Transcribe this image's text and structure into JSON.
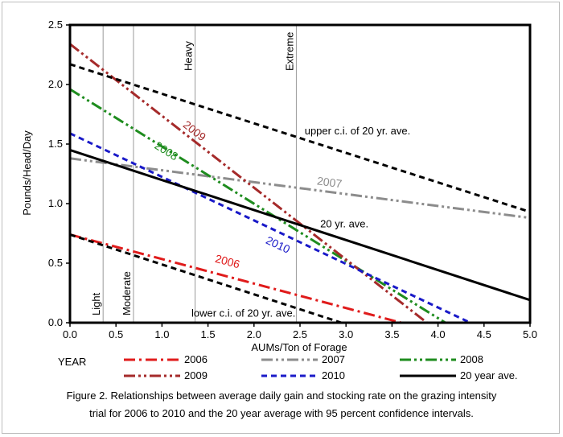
{
  "chart_data": {
    "type": "line",
    "title": "",
    "xlabel": "AUMs/Ton of Forage",
    "ylabel": "Pounds/Head/Day",
    "xlim": [
      0.0,
      5.0
    ],
    "ylim": [
      0.0,
      2.5
    ],
    "x_ticks": [
      "0.0",
      "0.5",
      "1.0",
      "1.5",
      "2.0",
      "2.5",
      "3.0",
      "3.5",
      "4.0",
      "4.5",
      "5.0"
    ],
    "y_ticks": [
      "0.0",
      "0.5",
      "1.0",
      "1.5",
      "2.0",
      "2.5"
    ],
    "grid": false,
    "intensity_lines": [
      {
        "label": "Light",
        "x": 0.36,
        "label_pos": "bottom"
      },
      {
        "label": "Moderate",
        "x": 0.69,
        "label_pos": "bottom"
      },
      {
        "label": "Heavy",
        "x": 1.36,
        "label_pos": "top"
      },
      {
        "label": "Extreme",
        "x": 2.46,
        "label_pos": "top"
      }
    ],
    "series": [
      {
        "name": "2006",
        "color": "#e01b1b",
        "dash": "dash-dot",
        "x": [
          0.0,
          3.6
        ],
        "y": [
          0.74,
          0.0
        ],
        "label": "2006",
        "label_at": [
          1.57,
          0.51
        ]
      },
      {
        "name": "2007",
        "color": "#8c8c8c",
        "dash": "dash-dot-dot",
        "x": [
          0.0,
          5.0
        ],
        "y": [
          1.38,
          0.88
        ],
        "label": "2007",
        "label_at": [
          2.68,
          1.16
        ]
      },
      {
        "name": "2008",
        "color": "#1e8c1e",
        "dash": "dash-dot-dot",
        "x": [
          0.0,
          4.08
        ],
        "y": [
          1.96,
          0.0
        ],
        "label": "2008",
        "label_at": [
          0.91,
          1.47
        ]
      },
      {
        "name": "2009",
        "color": "#a52a2a",
        "dash": "dash-dot-dot",
        "x": [
          0.0,
          3.88
        ],
        "y": [
          2.34,
          0.0
        ],
        "label": "2009",
        "label_at": [
          1.22,
          1.65
        ]
      },
      {
        "name": "2010",
        "color": "#1a1ac8",
        "dash": "dash",
        "x": [
          0.0,
          4.35
        ],
        "y": [
          1.59,
          0.0
        ],
        "label": "2010",
        "label_at": [
          2.12,
          0.67
        ]
      },
      {
        "name": "20 year ave.",
        "color": "#000000",
        "dash": "solid",
        "x": [
          0.0,
          5.0
        ],
        "y": [
          1.45,
          0.19
        ],
        "label": "20 yr. ave.",
        "label_at": [
          2.72,
          0.8
        ]
      },
      {
        "name": "upper c.i. of 20 yr. ave.",
        "color": "#000000",
        "dash": "dash",
        "x": [
          0.0,
          5.0
        ],
        "y": [
          2.17,
          0.93
        ],
        "label": "upper c.i. of 20 yr. ave.",
        "label_at": [
          2.55,
          1.58
        ]
      },
      {
        "name": "lower c.i. of 20 yr. ave.",
        "color": "#000000",
        "dash": "dash",
        "x": [
          0.0,
          2.95
        ],
        "y": [
          0.74,
          0.0
        ],
        "label": "lower c.i. of 20 yr. ave.",
        "label_at": [
          1.32,
          0.05
        ]
      }
    ]
  },
  "legend": {
    "heading": "YEAR",
    "items": [
      {
        "label": "2006",
        "color": "#e01b1b",
        "dash": "dash-dot"
      },
      {
        "label": "2007",
        "color": "#8c8c8c",
        "dash": "dash-dot-dot"
      },
      {
        "label": "2008",
        "color": "#1e8c1e",
        "dash": "dash-dot-dot"
      },
      {
        "label": "2009",
        "color": "#a52a2a",
        "dash": "dash-dot-dot"
      },
      {
        "label": "2010",
        "color": "#1a1ac8",
        "dash": "dash"
      },
      {
        "label": "20 year ave.",
        "color": "#000000",
        "dash": "solid"
      }
    ]
  },
  "caption": {
    "line1": "Figure 2. Relationships between average daily gain and stocking rate on the grazing intensity",
    "line2": "trial for 2006 to 2010 and the 20 year average with 95 percent confidence intervals."
  }
}
